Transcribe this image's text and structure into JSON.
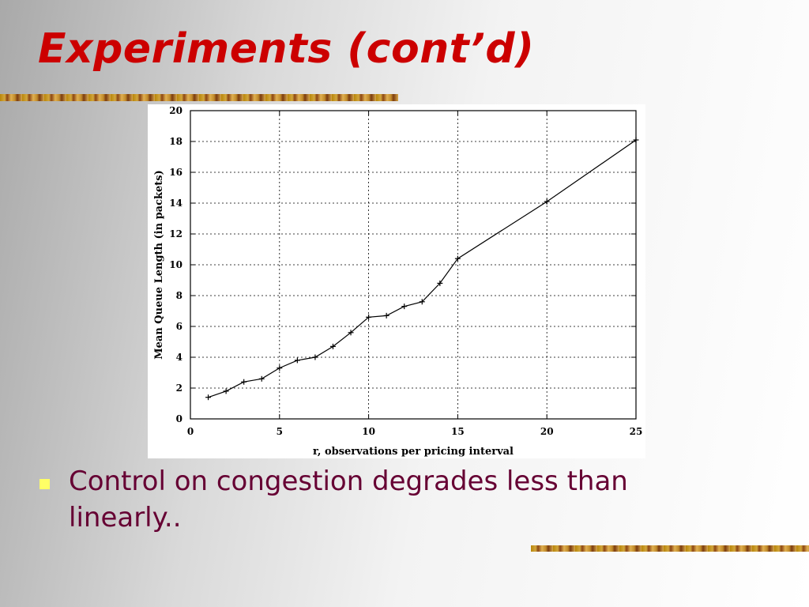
{
  "slide": {
    "title": "Experiments (cont’d)",
    "bullet_text": "Control on congestion degrades less than linearly.."
  },
  "colors": {
    "title": "#cc0000",
    "bullet_square": "#ffff66",
    "bullet_text": "#660033"
  },
  "chart_data": {
    "type": "line",
    "title": "",
    "xlabel": "r, observations per pricing interval",
    "ylabel": "Mean Queue Length (in packets)",
    "xlim": [
      0,
      25
    ],
    "ylim": [
      0,
      20
    ],
    "xticks": [
      0,
      5,
      10,
      15,
      20,
      25
    ],
    "yticks": [
      0,
      2,
      4,
      6,
      8,
      10,
      12,
      14,
      16,
      18,
      20
    ],
    "grid": true,
    "legend": "none",
    "marker": "plus",
    "series": [
      {
        "x": [
          1,
          2,
          3,
          4,
          5,
          6,
          7,
          8,
          9,
          10,
          11,
          12,
          13,
          14,
          15,
          20,
          25
        ],
        "values": [
          1.4,
          1.8,
          2.4,
          2.6,
          3.3,
          3.8,
          4.0,
          4.7,
          5.6,
          6.6,
          6.7,
          7.3,
          7.6,
          8.8,
          10.4,
          14.1,
          18.1
        ]
      }
    ]
  }
}
